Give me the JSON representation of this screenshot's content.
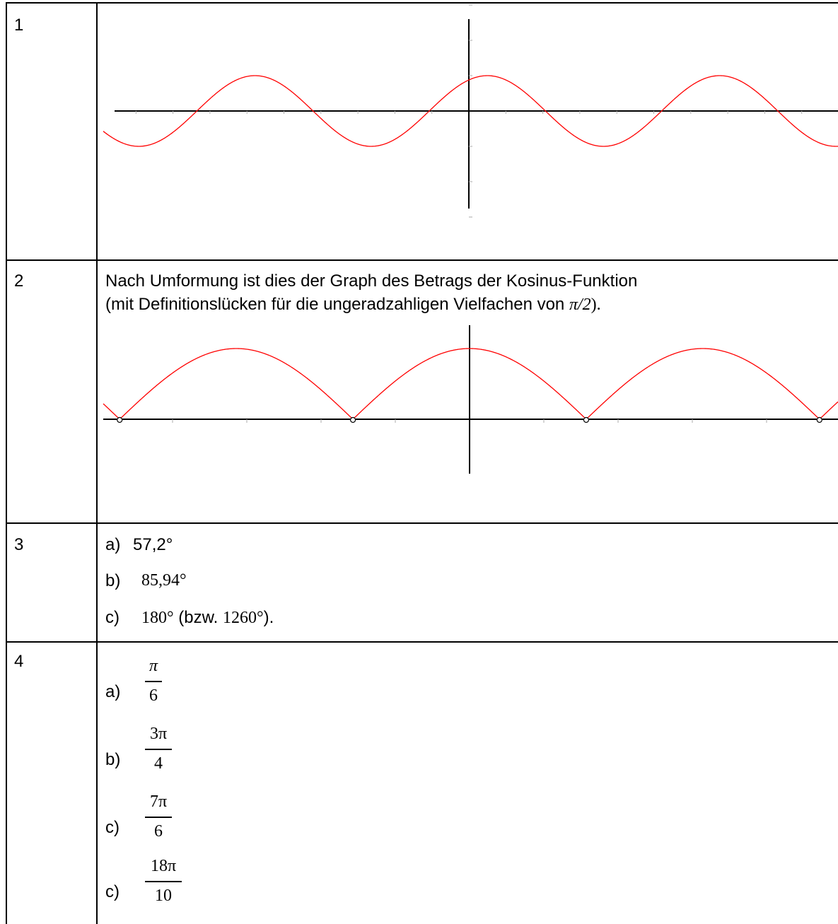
{
  "rows": [
    {
      "number": "1"
    },
    {
      "number": "2",
      "text_line1": "Nach Umformung ist dies der Graph des Betrags der Kosinus-Funktion",
      "text_line2_prefix": "(mit Definitionslücken für die ungeradzahligen Vielfachen von ",
      "text_line2_math": "π/2",
      "text_line2_suffix": ")."
    },
    {
      "number": "3",
      "items": [
        {
          "label": "a)",
          "value": "57,2°"
        },
        {
          "label": "b)",
          "value": "85,94°"
        },
        {
          "label": "c)",
          "value_main": "180°",
          "value_mid": " (bzw. ",
          "value_alt": "1260°",
          "value_end": ")."
        }
      ]
    },
    {
      "number": "4",
      "items": [
        {
          "label": "a)",
          "numerator": "π",
          "denominator": "6"
        },
        {
          "label": "b)",
          "numerator": "3π",
          "denominator": "4"
        },
        {
          "label": "c)",
          "numerator": "7π",
          "denominator": "6"
        },
        {
          "label": "c)",
          "numerator": "18π",
          "denominator": "10"
        }
      ]
    }
  ],
  "chart_data": [
    {
      "type": "line",
      "function": "cos(x - 0.5)",
      "series": [
        {
          "color": "#ff0000"
        }
      ],
      "grid": false,
      "axes_color": "#000000"
    },
    {
      "type": "line",
      "function": "|cos(x)|",
      "open_points_at": "odd multiples of π/2",
      "series": [
        {
          "color": "#ff0000"
        }
      ],
      "grid": false,
      "axes_color": "#000000"
    }
  ]
}
